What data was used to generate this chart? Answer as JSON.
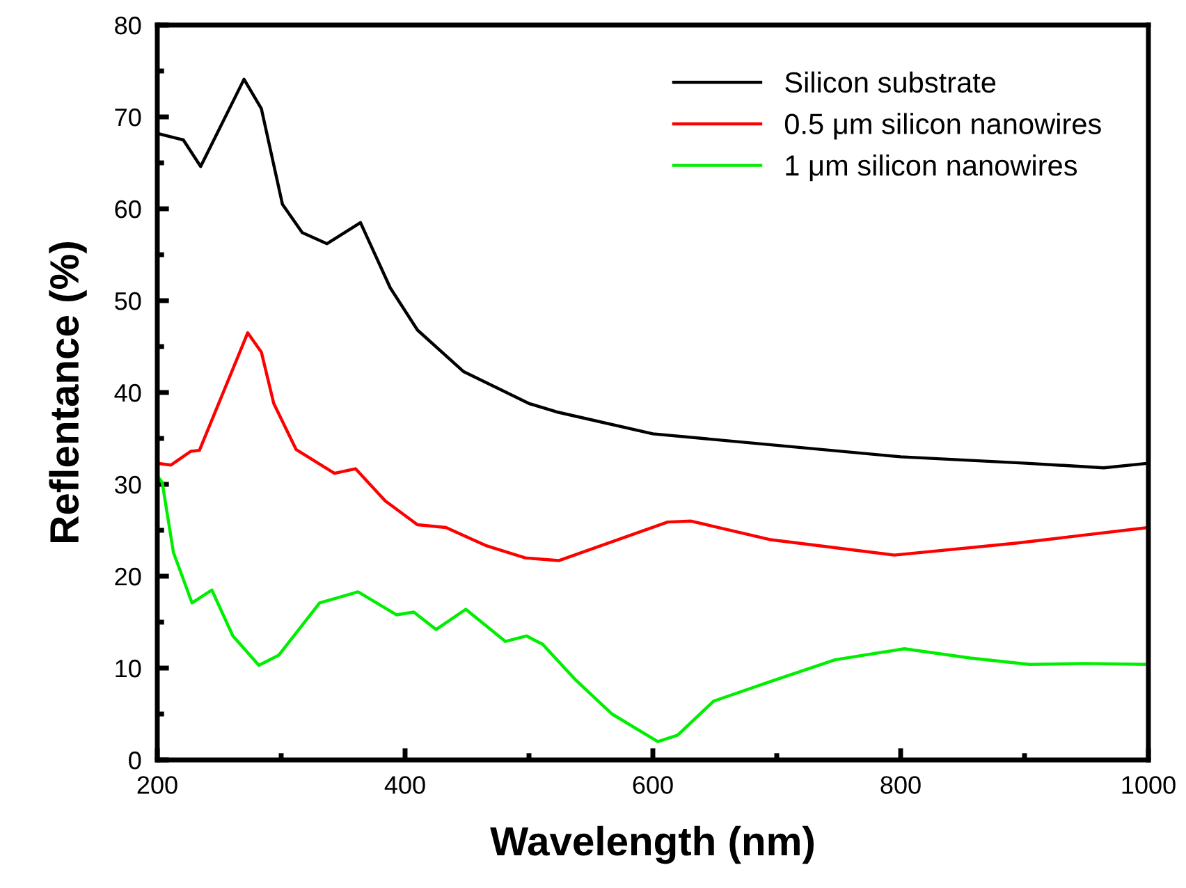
{
  "chart_data": {
    "type": "line",
    "xlabel": "Wavelength (nm)",
    "ylabel": "Reflentance (%)",
    "xlim": [
      200,
      1000
    ],
    "ylim": [
      0,
      80
    ],
    "xticks": [
      200,
      {
        "value": 300,
        "label": null
      },
      400,
      {
        "value": 500,
        "label": null
      },
      600,
      {
        "value": 700,
        "label": null
      },
      800,
      {
        "value": 900,
        "label": null
      },
      1000
    ],
    "yticks": [
      0,
      {
        "value": 5,
        "label": null
      },
      10,
      {
        "value": 15,
        "label": null
      },
      20,
      {
        "value": 25,
        "label": null
      },
      30,
      {
        "value": 35,
        "label": null
      },
      40,
      {
        "value": 45,
        "label": null
      },
      50,
      {
        "value": 55,
        "label": null
      },
      60,
      {
        "value": 65,
        "label": null
      },
      70,
      {
        "value": 75,
        "label": null
      },
      80
    ],
    "grid": false,
    "legend": "top right",
    "marker": "none",
    "line_style": "solid",
    "series": [
      {
        "name": "Silicon substrate",
        "color": "#000000",
        "x": [
          200,
          221,
          235,
          270,
          284,
          301,
          317,
          337,
          364,
          388,
          410,
          447,
          500,
          522,
          600,
          800,
          901,
          964,
          1000
        ],
        "values": [
          68.2,
          67.5,
          64.6,
          74.1,
          70.9,
          60.5,
          57.4,
          56.2,
          58.5,
          51.4,
          46.8,
          42.3,
          38.8,
          37.9,
          35.5,
          33.0,
          32.3,
          31.8,
          32.3
        ]
      },
      {
        "name": "0.5 μm silicon nanowires",
        "color": "#ff0000",
        "x": [
          200,
          211,
          227,
          234,
          273,
          284,
          294,
          312,
          343,
          360,
          384,
          410,
          433,
          466,
          497,
          524,
          612,
          631,
          694,
          795,
          893,
          1000
        ],
        "values": [
          32.3,
          32.1,
          33.6,
          33.7,
          46.5,
          44.4,
          38.8,
          33.8,
          31.2,
          31.7,
          28.2,
          25.6,
          25.3,
          23.3,
          22.0,
          21.7,
          25.9,
          26.0,
          24.0,
          22.3,
          23.6,
          25.3
        ]
      },
      {
        "name": "1 μm silicon nanowires",
        "color": "#00ee00",
        "x": [
          200,
          204,
          213,
          228,
          244,
          261,
          282,
          298,
          331,
          362,
          393,
          407,
          425,
          449,
          481,
          498,
          511,
          537,
          567,
          604,
          620,
          649,
          694,
          747,
          803,
          856,
          904,
          949,
          1000
        ],
        "values": [
          30.9,
          30.2,
          22.6,
          17.1,
          18.5,
          13.5,
          10.3,
          11.4,
          17.1,
          18.3,
          15.8,
          16.1,
          14.2,
          16.4,
          12.9,
          13.5,
          12.6,
          8.8,
          5.0,
          2.0,
          2.7,
          6.4,
          8.5,
          10.9,
          12.1,
          11.1,
          10.4,
          10.5,
          10.4
        ]
      }
    ]
  }
}
